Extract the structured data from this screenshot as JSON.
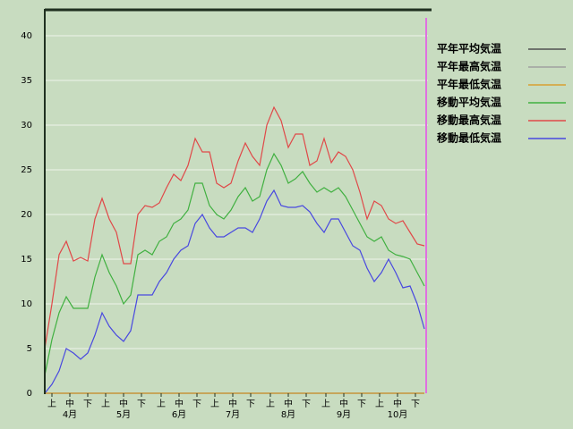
{
  "chart_data": {
    "type": "line",
    "x": [
      0,
      4,
      8,
      12,
      16,
      20,
      24,
      28,
      32,
      36,
      40,
      44,
      48,
      52,
      56,
      60,
      64,
      68,
      72,
      76,
      80,
      84,
      88,
      92,
      96,
      100,
      104,
      108,
      112,
      116,
      120,
      124,
      128,
      132,
      136,
      140,
      144,
      148,
      152,
      156,
      160,
      164,
      168,
      172,
      176,
      180,
      184,
      188,
      192,
      196,
      200,
      204,
      208,
      212
    ],
    "xlim": [
      0,
      214
    ],
    "xticks": [
      {
        "value": 4,
        "label": "上"
      },
      {
        "value": 14,
        "label": "中"
      },
      {
        "value": 24,
        "label": "下"
      },
      {
        "value": 34,
        "label": "上"
      },
      {
        "value": 44,
        "label": "中"
      },
      {
        "value": 54,
        "label": "下"
      },
      {
        "value": 65,
        "label": "上"
      },
      {
        "value": 75,
        "label": "中"
      },
      {
        "value": 85,
        "label": "下"
      },
      {
        "value": 95,
        "label": "上"
      },
      {
        "value": 105,
        "label": "中"
      },
      {
        "value": 115,
        "label": "下"
      },
      {
        "value": 126,
        "label": "上"
      },
      {
        "value": 136,
        "label": "中"
      },
      {
        "value": 146,
        "label": "下"
      },
      {
        "value": 157,
        "label": "上"
      },
      {
        "value": 167,
        "label": "中"
      },
      {
        "value": 177,
        "label": "下"
      },
      {
        "value": 187,
        "label": "上"
      },
      {
        "value": 197,
        "label": "中"
      },
      {
        "value": 207,
        "label": "下"
      }
    ],
    "month_labels": [
      {
        "value": 14,
        "label": "4月"
      },
      {
        "value": 44,
        "label": "5月"
      },
      {
        "value": 75,
        "label": "6月"
      },
      {
        "value": 105,
        "label": "7月"
      },
      {
        "value": 136,
        "label": "8月"
      },
      {
        "value": 167,
        "label": "9月"
      },
      {
        "value": 197,
        "label": "10月"
      }
    ],
    "ylim": [
      0,
      43
    ],
    "yticks": [
      0,
      5,
      10,
      15,
      20,
      25,
      30,
      35,
      40
    ],
    "grid": true,
    "series": [
      {
        "name": "平年平均気温",
        "color": "#505050",
        "values": [
          0,
          0,
          0,
          0,
          0,
          0,
          0,
          0,
          0,
          0,
          0,
          0,
          0,
          0,
          0,
          0,
          0,
          0,
          0,
          0,
          0,
          0,
          0,
          0,
          0,
          0,
          0,
          0,
          0,
          0,
          0,
          0,
          0,
          0,
          0,
          0,
          0,
          0,
          0,
          0,
          0,
          0,
          0,
          0,
          0,
          0,
          0,
          0,
          0,
          0,
          0,
          0,
          0,
          0
        ]
      },
      {
        "name": "平年最高気温",
        "color": "#a0a0a0",
        "values": [
          0,
          0,
          0,
          0,
          0,
          0,
          0,
          0,
          0,
          0,
          0,
          0,
          0,
          0,
          0,
          0,
          0,
          0,
          0,
          0,
          0,
          0,
          0,
          0,
          0,
          0,
          0,
          0,
          0,
          0,
          0,
          0,
          0,
          0,
          0,
          0,
          0,
          0,
          0,
          0,
          0,
          0,
          0,
          0,
          0,
          0,
          0,
          0,
          0,
          0,
          0,
          0,
          0,
          0
        ]
      },
      {
        "name": "平年最低気温",
        "color": "#d8a030",
        "values": [
          0,
          0,
          0,
          0,
          0,
          0,
          0,
          0,
          0,
          0,
          0,
          0,
          0,
          0,
          0,
          0,
          0,
          0,
          0,
          0,
          0,
          0,
          0,
          0,
          0,
          0,
          0,
          0,
          0,
          0,
          0,
          0,
          0,
          0,
          0,
          0,
          0,
          0,
          0,
          0,
          0,
          0,
          0,
          0,
          0,
          0,
          0,
          0,
          0,
          0,
          0,
          0,
          0,
          0
        ]
      },
      {
        "name": "移動平均気温",
        "color": "#40b040",
        "values": [
          2,
          6,
          9,
          10.8,
          9.5,
          9.5,
          9.5,
          13,
          15.5,
          13.5,
          12,
          10,
          11,
          15.5,
          16,
          15.5,
          17,
          17.5,
          19,
          19.5,
          20.5,
          23.5,
          23.5,
          21,
          20,
          19.5,
          20.5,
          22,
          23,
          21.5,
          22,
          25,
          26.8,
          25.5,
          23.5,
          24,
          24.8,
          23.5,
          22.5,
          23,
          22.5,
          23,
          22,
          20.5,
          19,
          17.5,
          17,
          17.5,
          16,
          15.5,
          15.3,
          15,
          13.5,
          12
        ]
      },
      {
        "name": "移動最高気温",
        "color": "#e04848",
        "values": [
          5,
          10,
          15.5,
          17,
          14.8,
          15.2,
          14.8,
          19.5,
          21.8,
          19.5,
          18,
          14.5,
          14.5,
          20,
          21,
          20.8,
          21.3,
          23,
          24.5,
          23.8,
          25.5,
          28.5,
          27,
          27,
          23.5,
          23,
          23.5,
          26,
          28,
          26.5,
          25.5,
          30,
          32,
          30.5,
          27.5,
          29,
          29,
          25.5,
          26,
          28.5,
          25.8,
          27,
          26.5,
          25,
          22.5,
          19.5,
          21.5,
          21,
          19.5,
          19,
          19.3,
          18,
          16.7,
          16.5
        ]
      },
      {
        "name": "移動最低気温",
        "color": "#4848e0",
        "values": [
          0,
          1,
          2.5,
          5,
          4.5,
          3.8,
          4.5,
          6.5,
          9,
          7.5,
          6.5,
          5.8,
          7,
          11,
          11,
          11,
          12.5,
          13.5,
          15,
          16,
          16.5,
          19,
          20,
          18.5,
          17.5,
          17.5,
          18,
          18.5,
          18.5,
          18,
          19.5,
          21.5,
          22.7,
          21,
          20.8,
          20.8,
          21,
          20.3,
          19,
          18,
          19.5,
          19.5,
          18,
          16.5,
          16,
          14,
          12.5,
          13.5,
          15,
          13.5,
          11.8,
          12,
          10,
          7.2
        ]
      }
    ]
  }
}
